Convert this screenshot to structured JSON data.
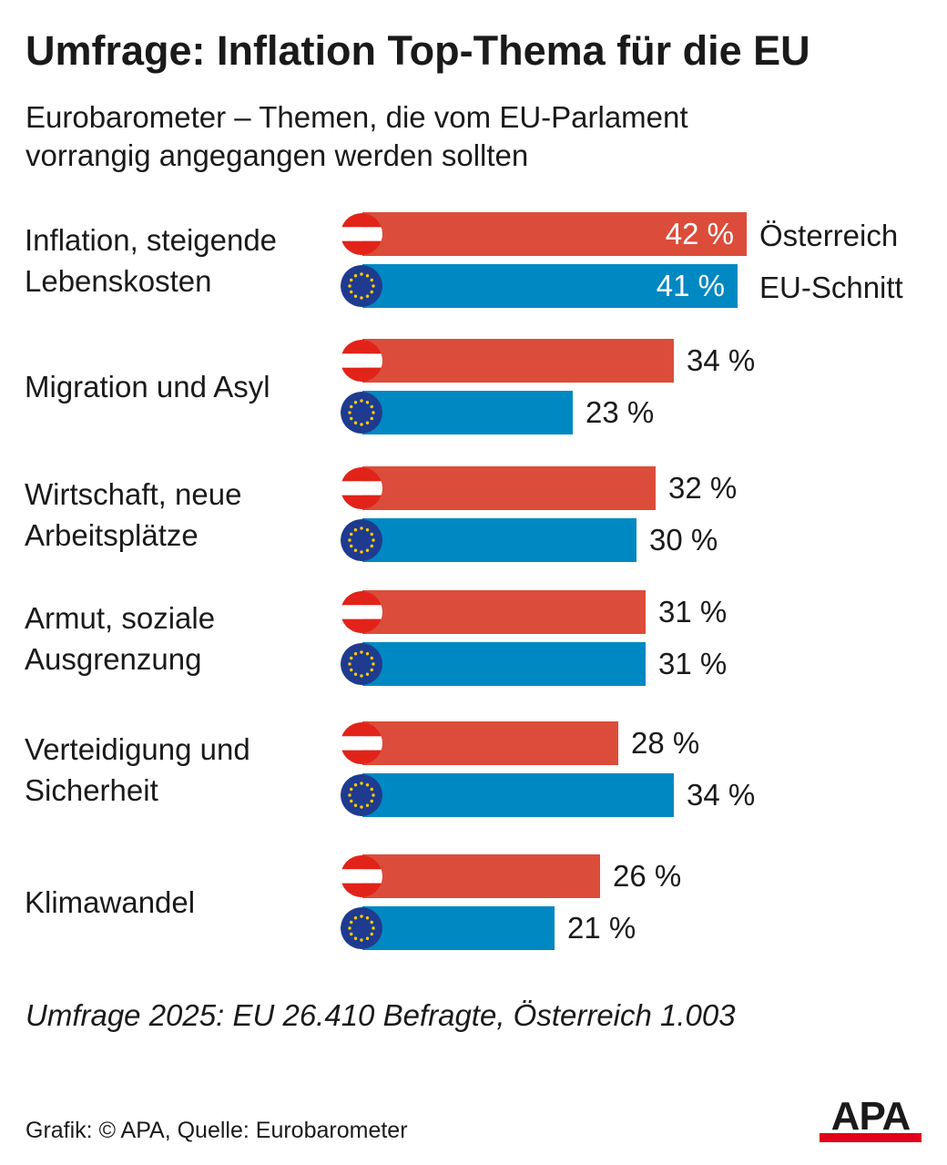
{
  "title": "Umfrage: Inflation Top-Thema für die EU",
  "subtitle_lines": [
    "Eurobarometer – Themen, die vom EU-Parlament",
    "vorrangig angegangen werden sollten"
  ],
  "colors": {
    "austria": "#dc4c3a",
    "eu": "#0088c2"
  },
  "chart_data": {
    "type": "bar",
    "orientation": "horizontal",
    "unit": "%",
    "categories": [
      [
        "Inflation, steigende",
        "Lebenskosten"
      ],
      [
        "Migration und Asyl"
      ],
      [
        "Wirtschaft, neue",
        "Arbeitsplätze"
      ],
      [
        "Armut, soziale",
        "Ausgrenzung"
      ],
      [
        "Verteidigung und",
        "Sicherheit"
      ],
      [
        "Klimawandel"
      ]
    ],
    "series": [
      {
        "name": "Österreich",
        "icon": "austria-flag-icon",
        "values": [
          42,
          34,
          32,
          31,
          28,
          26
        ]
      },
      {
        "name": "EU-Schnitt",
        "icon": "eu-flag-icon",
        "values": [
          41,
          23,
          30,
          31,
          34,
          21
        ]
      }
    ],
    "legend_placement": "right of first category",
    "grid": false
  },
  "note": "Umfrage 2025: EU 26.410 Befragte, Österreich 1.003",
  "source": "Grafik: © APA, Quelle: Eurobarometer",
  "logo": {
    "text": "APA",
    "icon": "apa-logo-icon"
  }
}
